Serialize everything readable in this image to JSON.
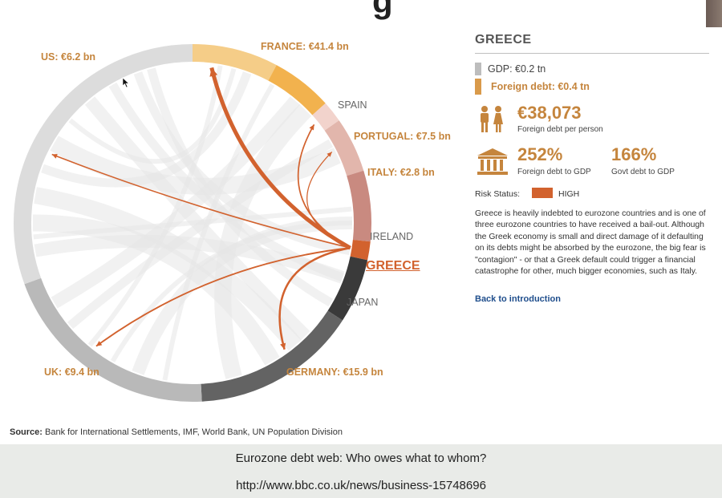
{
  "chart_data": {
    "type": "chord",
    "title": "",
    "selected_country": "GREECE",
    "segments": [
      {
        "name": "FRANCE",
        "label": "FRANCE: €41.4 bn",
        "exposure_bn": 41.4,
        "color": "#f5cd88",
        "label_color": "#c5853d"
      },
      {
        "name": "SPAIN",
        "label": "SPAIN",
        "exposure_bn": null,
        "color": "#f2b24e",
        "label_color": "#666666"
      },
      {
        "name": "PORTUGAL",
        "label": "PORTUGAL: €7.5 bn",
        "exposure_bn": 7.5,
        "color": "#f2d3cc",
        "label_color": "#c5853d"
      },
      {
        "name": "ITALY",
        "label": "ITALY: €2.8 bn",
        "exposure_bn": 2.8,
        "color": "#e2b6ac",
        "label_color": "#c5853d"
      },
      {
        "name": "IRELAND",
        "label": "IRELAND",
        "exposure_bn": null,
        "color": "#c98a80",
        "label_color": "#666666"
      },
      {
        "name": "GREECE",
        "label": "GREECE",
        "exposure_bn": null,
        "color": "#d2622e",
        "label_color": "#d2622e"
      },
      {
        "name": "JAPAN",
        "label": "JAPAN",
        "exposure_bn": null,
        "color": "#3a3a3a",
        "label_color": "#666666"
      },
      {
        "name": "GERMANY",
        "label": "GERMANY: €15.9 bn",
        "exposure_bn": 15.9,
        "color": "#636363",
        "label_color": "#c5853d"
      },
      {
        "name": "UK",
        "label": "UK: €9.4 bn",
        "exposure_bn": 9.4,
        "color": "#b9b9b9",
        "label_color": "#c5853d"
      },
      {
        "name": "US",
        "label": "US: €6.2 bn",
        "exposure_bn": 6.2,
        "color": "#dcdcdc",
        "label_color": "#c5853d"
      }
    ],
    "flows": [
      {
        "from": "GREECE",
        "to": "FRANCE",
        "value_bn": 41.4
      },
      {
        "from": "GREECE",
        "to": "GERMANY",
        "value_bn": 15.9
      },
      {
        "from": "GREECE",
        "to": "UK",
        "value_bn": 9.4
      },
      {
        "from": "GREECE",
        "to": "PORTUGAL",
        "value_bn": 7.5
      },
      {
        "from": "GREECE",
        "to": "US",
        "value_bn": 6.2
      },
      {
        "from": "GREECE",
        "to": "ITALY",
        "value_bn": 2.8
      }
    ]
  },
  "info": {
    "title": "GREECE",
    "gdp": "GDP: €0.2 tn",
    "foreign_debt": "Foreign debt: €0.4 tn",
    "per_person_value": "€38,073",
    "per_person_caption": "Foreign debt per person",
    "debt_gdp_value": "252%",
    "debt_gdp_caption": "Foreign debt to GDP",
    "govt_gdp_value": "166%",
    "govt_gdp_caption": "Govt debt to GDP",
    "risk_label": "Risk Status:",
    "risk_value": "HIGH",
    "risk_color": "#d2622e",
    "description": "Greece is heavily indebted to eurozone countries and is one of three eurozone countries to have received a bail-out. Although the Greek economy is small and direct damage of it defaulting on its debts might be absorbed by the eurozone, the big fear is \"contagion\" - or that a Greek default could trigger a financial catastrophe for other, much bigger economies, such as Italy.",
    "back_link": "Back to introduction",
    "icons": [
      "people-icon",
      "bank-building-icon"
    ]
  },
  "source": {
    "label": "Source:",
    "text": "Bank for International Settlements, IMF, World Bank, UN Population Division"
  },
  "slide": {
    "caption": "Eurozone debt web: Who owes what to whom?",
    "url": "http://www.bbc.co.uk/news/business-15748696"
  },
  "colors": {
    "accent_orange": "#c5853d",
    "greece_red": "#d2622e",
    "link_blue": "#1f4e8c"
  }
}
